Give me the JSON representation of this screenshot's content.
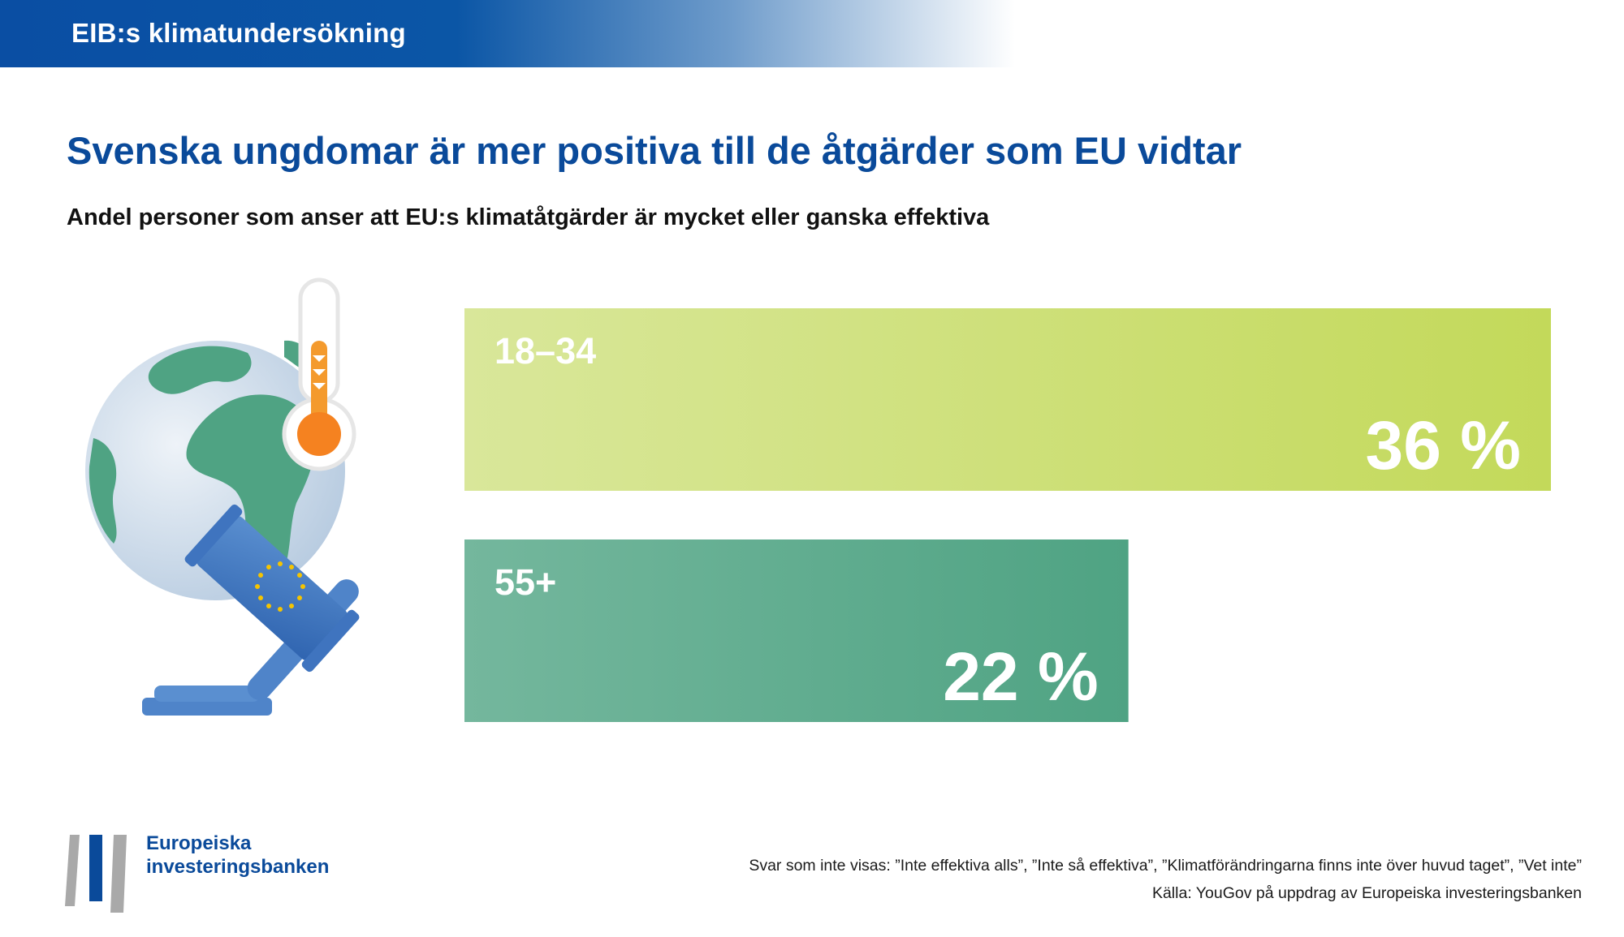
{
  "header": {
    "title": "EIB:s klimatundersökning"
  },
  "title": "Svenska ungdomar är mer positiva till de åtgärder som EU vidtar",
  "subtitle": "Andel personer som anser att EU:s klimatåtgärder är mycket eller ganska effektiva",
  "illustration": {
    "icons": [
      "globe-icon",
      "thermometer-icon",
      "eu-gavel-icon"
    ]
  },
  "chart_data": {
    "type": "bar",
    "orientation": "horizontal",
    "title": "Andel personer som anser att EU:s klimatåtgärder är mycket eller ganska effektiva",
    "categories": [
      "18–34",
      "55+"
    ],
    "values": [
      36,
      22
    ],
    "value_labels": [
      "36 %",
      "22 %"
    ],
    "unit": "%",
    "xlim": [
      0,
      36
    ],
    "grid": false,
    "legend": "none",
    "colors": [
      "#c3d95a",
      "#4fa383"
    ]
  },
  "colors": {
    "brand_blue": "#0a4a9a",
    "bar_green_light": "#c3d95a",
    "bar_green_dark": "#4fa383"
  },
  "logo": {
    "name_line1": "Europeiska",
    "name_line2": "investeringsbanken"
  },
  "footer": {
    "note": "Svar som inte visas: ”Inte effektiva alls”, ”Inte så effektiva”, ”Klimatförändringarna finns inte över huvud taget”, ”Vet inte”",
    "source": "Källa: YouGov på uppdrag av Europeiska investeringsbanken"
  }
}
